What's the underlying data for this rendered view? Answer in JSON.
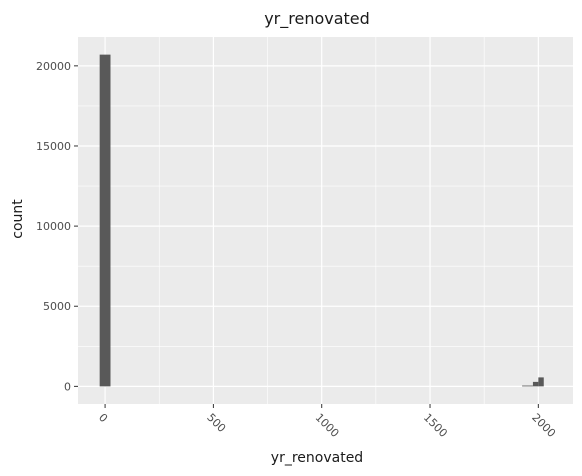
{
  "chart_data": {
    "type": "bar",
    "title": "yr_renovated",
    "xlabel": "yr_renovated",
    "ylabel": "count",
    "xlim": [
      -125,
      2160
    ],
    "ylim": [
      -1100,
      21800
    ],
    "x_ticks": [
      0,
      500,
      1000,
      1500,
      2000
    ],
    "x_tick_labels": [
      "0",
      "500",
      "1000",
      "1500",
      "2000"
    ],
    "y_ticks": [
      0,
      5000,
      10000,
      15000,
      20000
    ],
    "y_tick_labels": [
      "0",
      "5000",
      "10000",
      "15000",
      "20000"
    ],
    "bin_width": 50,
    "bars": [
      {
        "x0": -25,
        "x1": 25,
        "value": 20700
      },
      {
        "x0": 1925,
        "x1": 1975,
        "value": 50
      },
      {
        "x0": 1975,
        "x1": 2000,
        "value": 280
      },
      {
        "x0": 2000,
        "x1": 2025,
        "value": 560
      }
    ],
    "grid": true,
    "colors": {
      "panel": "#ebebeb",
      "grid": "#ffffff",
      "bar": "#595959"
    }
  }
}
